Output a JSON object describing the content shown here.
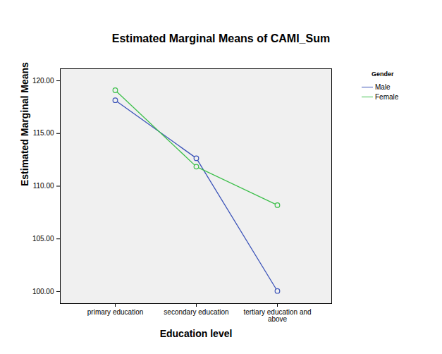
{
  "chart_data": {
    "type": "line",
    "title": "Estimated Marginal Means of CAMI_Sum",
    "x_label": "Education level",
    "y_label": "Estimated Marginal Means",
    "legend_title": "Gender",
    "legend": "right",
    "grid": false,
    "categories": [
      "primary education",
      "secondary education",
      "tertiary education and above"
    ],
    "series": [
      {
        "name": "Male",
        "color": "#3a52b8",
        "marker": "circle",
        "line_style": "solid",
        "values": [
          118.15,
          112.65,
          100.05
        ]
      },
      {
        "name": "Female",
        "color": "#3cbf4a",
        "marker": "circle",
        "line_style": "solid",
        "values": [
          119.1,
          111.85,
          108.2
        ]
      }
    ],
    "ylim": [
      98.86,
      121.14
    ],
    "yticks": [
      {
        "value": 100,
        "label": "100.00"
      },
      {
        "value": 105,
        "label": "105.00"
      },
      {
        "value": 110,
        "label": "110.00"
      },
      {
        "value": 115,
        "label": "115.00"
      },
      {
        "value": 120,
        "label": "120.00"
      }
    ]
  }
}
